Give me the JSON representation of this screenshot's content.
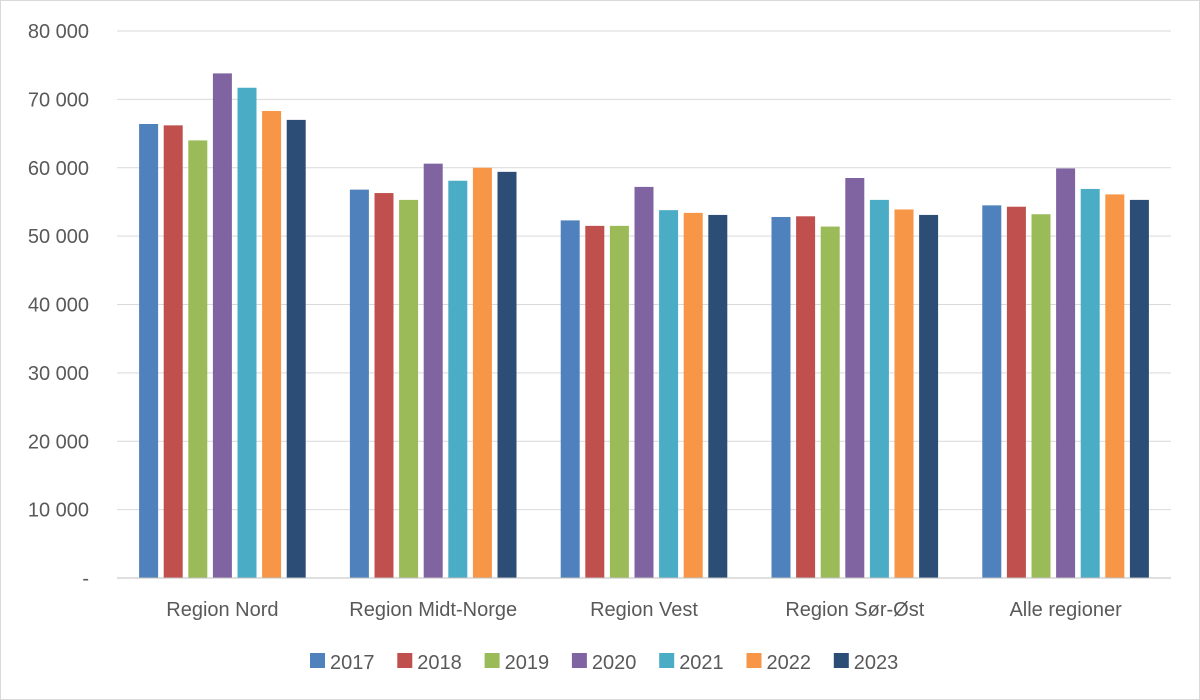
{
  "chart_data": {
    "type": "bar",
    "categories": [
      "Region Nord",
      "Region Midt-Norge",
      "Region Vest",
      "Region Sør-Øst",
      "Alle regioner"
    ],
    "series": [
      {
        "name": "2017",
        "color": "#4f81bd",
        "values": [
          66400,
          56800,
          52300,
          52800,
          54500
        ]
      },
      {
        "name": "2018",
        "color": "#c0504d",
        "values": [
          66200,
          56300,
          51500,
          52900,
          54300
        ]
      },
      {
        "name": "2019",
        "color": "#9bbb59",
        "values": [
          64000,
          55300,
          51500,
          51400,
          53200
        ]
      },
      {
        "name": "2020",
        "color": "#8064a2",
        "values": [
          73800,
          60600,
          57200,
          58500,
          59900
        ]
      },
      {
        "name": "2021",
        "color": "#4bacc6",
        "values": [
          71700,
          58100,
          53800,
          55300,
          56900
        ]
      },
      {
        "name": "2022",
        "color": "#f79646",
        "values": [
          68300,
          60000,
          53400,
          53900,
          56100
        ]
      },
      {
        "name": "2023",
        "color": "#2c4d75",
        "values": [
          67000,
          59400,
          53100,
          53100,
          55300
        ]
      }
    ],
    "y_ticks": [
      {
        "value": 0,
        "label": "-"
      },
      {
        "value": 10000,
        "label": "10 000"
      },
      {
        "value": 20000,
        "label": "20 000"
      },
      {
        "value": 30000,
        "label": "30 000"
      },
      {
        "value": 40000,
        "label": "40 000"
      },
      {
        "value": 50000,
        "label": "50 000"
      },
      {
        "value": 60000,
        "label": "60 000"
      },
      {
        "value": 70000,
        "label": "70 000"
      },
      {
        "value": 80000,
        "label": "80 000"
      }
    ],
    "ylim": [
      0,
      80000
    ],
    "grid": true,
    "legend_position": "bottom",
    "gridline_color": "#d9d9d9",
    "axis_color": "#bfbfbf",
    "text_color": "#595959"
  }
}
